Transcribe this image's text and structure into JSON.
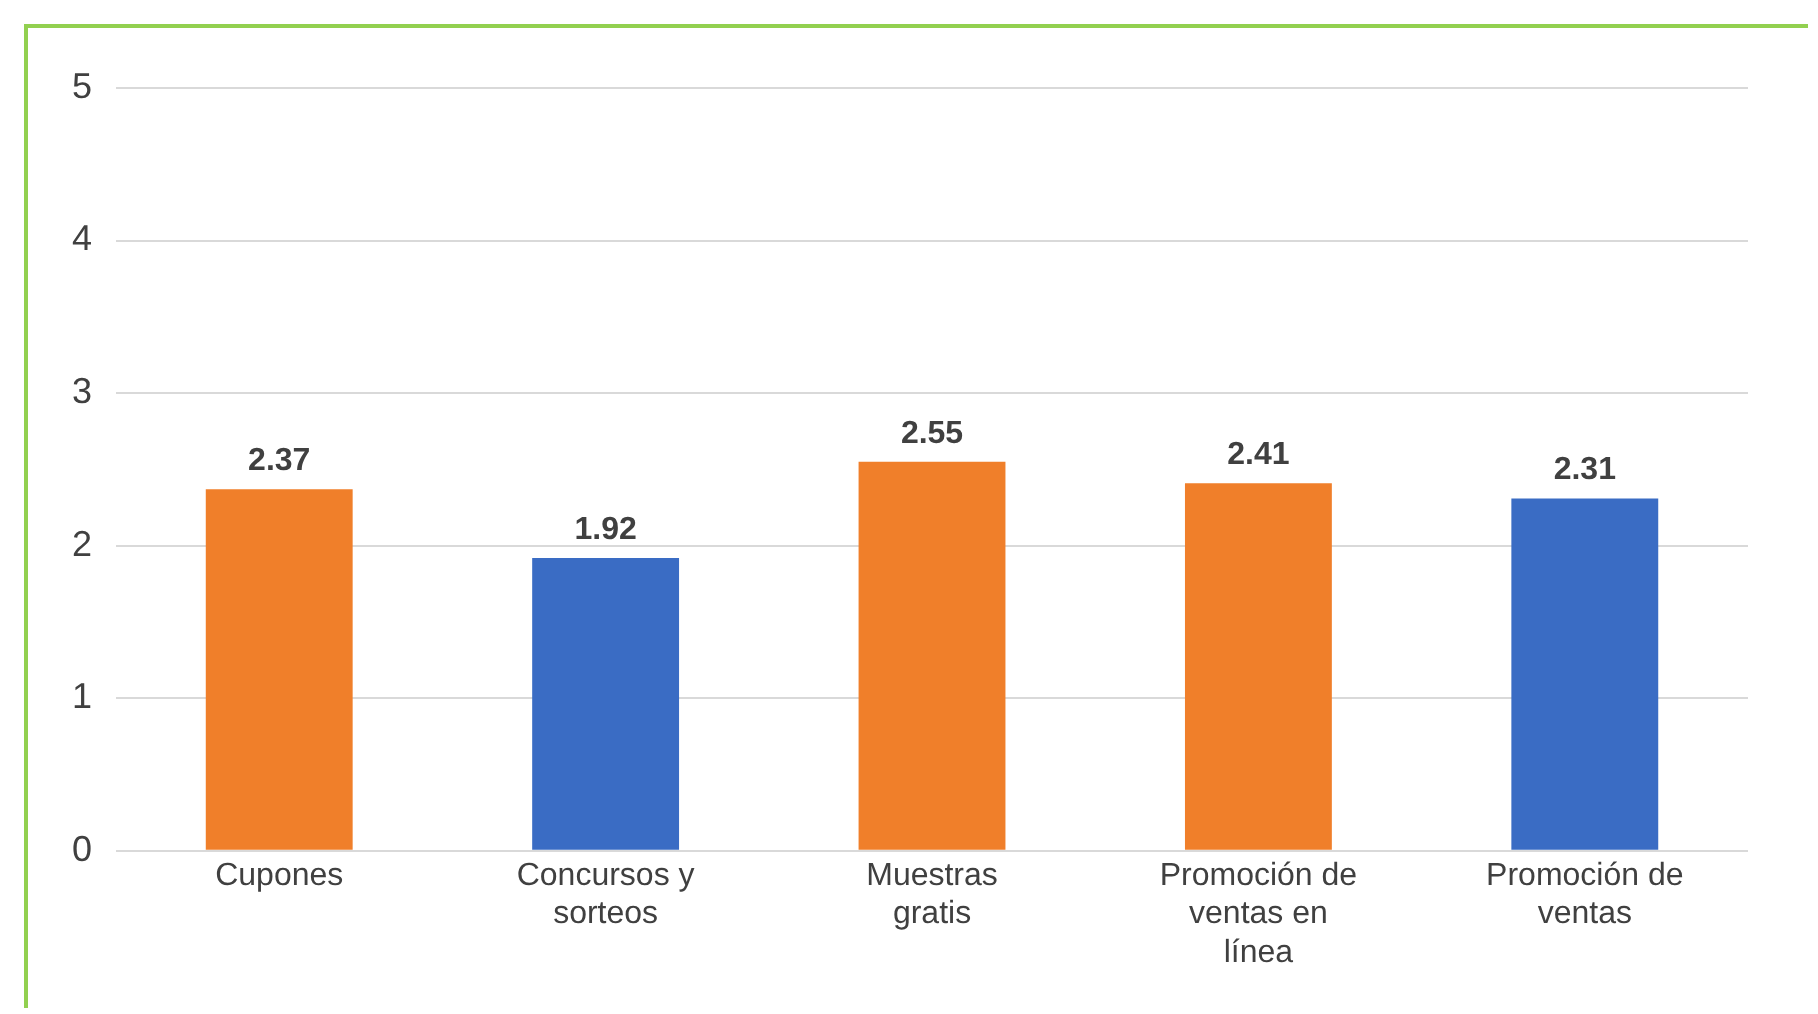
{
  "chart_data": {
    "type": "bar",
    "categories": [
      "Cupones",
      "Concursos y sorteos",
      "Muestras gratis",
      "Promoción de ventas en línea",
      "Promoción de ventas"
    ],
    "values": [
      2.37,
      1.92,
      2.55,
      2.41,
      2.31
    ],
    "colors": [
      "#f07f2a",
      "#3a6cc4",
      "#f07f2a",
      "#f07f2a",
      "#3a6cc4"
    ],
    "ylim": [
      0,
      5
    ],
    "yticks": [
      0,
      1,
      2,
      3,
      4,
      5
    ],
    "grid": "y",
    "data_labels": true,
    "legend": false
  }
}
